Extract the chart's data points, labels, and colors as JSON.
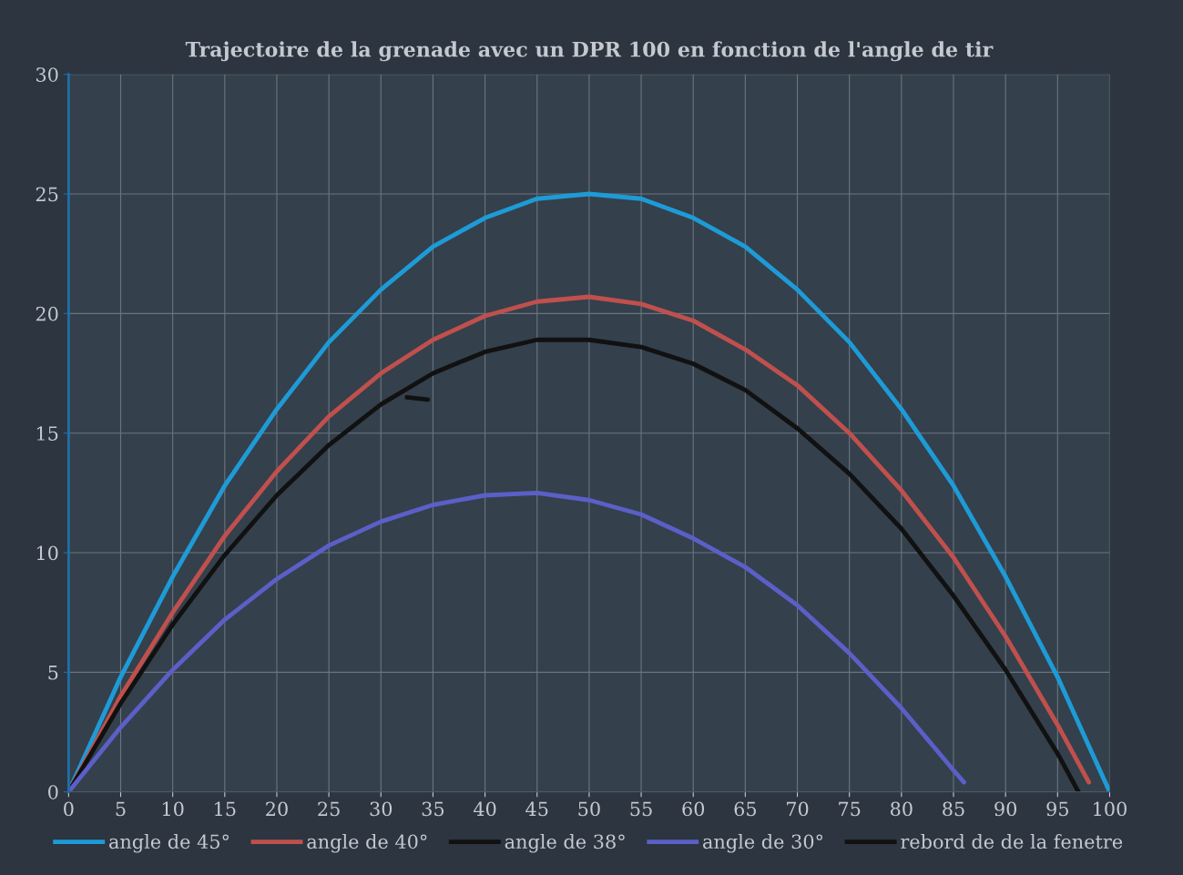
{
  "chart_data": {
    "type": "line",
    "title": "Trajectoire de la grenade avec un DPR 100 en fonction de l'angle de tir",
    "xlim": [
      0,
      100
    ],
    "xticks": [
      0,
      5,
      10,
      15,
      20,
      25,
      30,
      35,
      40,
      45,
      50,
      55,
      60,
      65,
      70,
      75,
      80,
      85,
      90,
      95,
      100
    ],
    "ylim": [
      0,
      30
    ],
    "yticks": [
      0,
      5,
      10,
      15,
      20,
      25,
      30
    ],
    "grid": true,
    "legend": "bottom",
    "marker": "none",
    "line_style": "solid",
    "series": [
      {
        "name": "angle de 45°",
        "color": "#1e9bd7",
        "x": [
          0,
          5,
          10,
          15,
          20,
          25,
          30,
          35,
          40,
          45,
          50,
          55,
          60,
          65,
          70,
          75,
          80,
          85,
          90,
          95,
          100
        ],
        "values": [
          0,
          4.8,
          9.0,
          12.8,
          16.0,
          18.8,
          21.0,
          22.8,
          24.0,
          24.8,
          25.0,
          24.8,
          24.0,
          22.8,
          21.0,
          18.8,
          16.0,
          12.8,
          9.0,
          4.8,
          0
        ]
      },
      {
        "name": "angle de 40°",
        "color": "#c0504d",
        "x": [
          0,
          5,
          10,
          15,
          20,
          25,
          30,
          35,
          40,
          45,
          50,
          55,
          60,
          65,
          70,
          75,
          80,
          85,
          90,
          95,
          98
        ],
        "values": [
          0,
          4.0,
          7.5,
          10.7,
          13.4,
          15.7,
          17.5,
          18.9,
          19.9,
          20.5,
          20.7,
          20.4,
          19.7,
          18.5,
          17.0,
          15.0,
          12.6,
          9.8,
          6.5,
          2.8,
          0.4
        ]
      },
      {
        "name": "angle de 38°",
        "color": "#111111",
        "x": [
          0,
          5,
          10,
          15,
          20,
          25,
          30,
          35,
          40,
          45,
          50,
          55,
          60,
          65,
          70,
          75,
          80,
          85,
          90,
          95,
          97
        ],
        "values": [
          0,
          3.7,
          7.0,
          9.9,
          12.4,
          14.5,
          16.2,
          17.5,
          18.4,
          18.9,
          18.9,
          18.6,
          17.9,
          16.8,
          15.2,
          13.3,
          11.0,
          8.2,
          5.1,
          1.6,
          0
        ]
      },
      {
        "name": "angle de 30°",
        "color": "#5b5fc7",
        "x": [
          0,
          5,
          10,
          15,
          20,
          25,
          30,
          35,
          40,
          45,
          50,
          55,
          60,
          65,
          70,
          75,
          80,
          85,
          86
        ],
        "values": [
          0,
          2.7,
          5.1,
          7.2,
          8.9,
          10.3,
          11.3,
          12.0,
          12.4,
          12.5,
          12.2,
          11.6,
          10.6,
          9.4,
          7.8,
          5.8,
          3.5,
          0.9,
          0.4
        ]
      },
      {
        "name": "rebord de de la fenetre",
        "color": "#111111",
        "x": [
          32.5,
          34.5
        ],
        "values": [
          16.5,
          16.4
        ]
      }
    ]
  }
}
